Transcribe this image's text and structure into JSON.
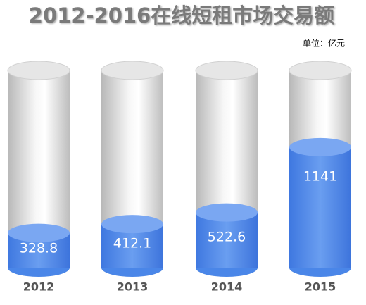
{
  "chart_data": {
    "type": "bar",
    "title": "2012-2016在线短租市场交易额",
    "unit_label": "单位：亿元",
    "categories": [
      "2012",
      "2013",
      "2014",
      "2015"
    ],
    "values": [
      328.8,
      412.1,
      522.6,
      1141
    ],
    "color": "#4a86e8"
  }
}
